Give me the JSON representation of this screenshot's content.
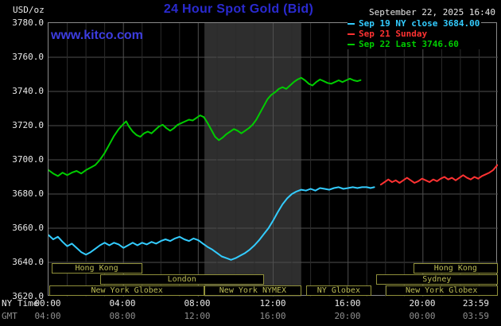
{
  "header": {
    "units": "USD/oz",
    "title": "24 Hour Spot Gold (Bid)",
    "datetime": "September 22, 2025 16:40",
    "watermark": "www.kitco.com",
    "legend": [
      {
        "label": "Sep 19 NY close 3684.00",
        "color": "#33ccff"
      },
      {
        "label": "Sep 21 Sunday",
        "color": "#ff3232"
      },
      {
        "label": "Sep 22 Last 3746.60",
        "color": "#00cc00"
      }
    ]
  },
  "axes": {
    "ny_time_label": "NY Time",
    "gmt_label": "GMT",
    "x_tick_hours": [
      0,
      4,
      8,
      12,
      16,
      20,
      23.983
    ],
    "x_ticks_ny": [
      "00:00",
      "04:00",
      "08:00",
      "12:00",
      "16:00",
      "20:00",
      "23:59"
    ],
    "x_ticks_gmt": [
      "04:00",
      "08:00",
      "12:00",
      "16:00",
      "20:00",
      "00:00",
      "03:59"
    ],
    "y_ticks": [
      "3780.0",
      "3760.0",
      "3740.0",
      "3720.0",
      "3700.0",
      "3680.0",
      "3660.0",
      "3640.0",
      "3620.0"
    ]
  },
  "colors": {
    "background": "#000000",
    "title_blue": "#2a2ad0",
    "watermark_blue": "#3d3de0",
    "grid_major": "#4f4f4f",
    "grid_minor": "#2b2b2b",
    "band": "#2e2e2e",
    "plot_border": "#8a8a8a",
    "session_border": "#90903a",
    "session_text": "#bdbd55",
    "axis_text": "#e8e8e8",
    "gmt_text": "#8f8f8f",
    "sep19_cyan": "#33ccff",
    "sep21_red": "#ff3232",
    "sep22_green": "#00cc00"
  },
  "chart_data": {
    "type": "line",
    "title": "24 Hour Spot Gold (Bid)",
    "ylabel": "USD/oz",
    "xlabel": "NY Time (hours)",
    "xlim": [
      0,
      24
    ],
    "ylim": [
      3620,
      3780
    ],
    "y_tick_step": 20,
    "grid": true,
    "legend_position": "top-right",
    "highlight_band": {
      "from_hour": 8.33,
      "to_hour": 13.5,
      "note": "NYMEX floor session"
    },
    "sessions": [
      {
        "row": 0,
        "label": "Hong Kong",
        "from": 0.15,
        "to": 5.0
      },
      {
        "row": 0,
        "label": "Hong Kong",
        "from": 19.5,
        "to": 23.98
      },
      {
        "row": 1,
        "label": "London",
        "from": 2.75,
        "to": 11.5
      },
      {
        "row": 1,
        "label": "Sydney",
        "from": 17.5,
        "to": 23.98
      },
      {
        "row": 2,
        "label": "New York Globex",
        "from": 0.05,
        "to": 8.33
      },
      {
        "row": 2,
        "label": "New York NYMEX",
        "from": 8.33,
        "to": 13.5
      },
      {
        "row": 2,
        "label": "NY Globex",
        "from": 13.75,
        "to": 17.25
      },
      {
        "row": 2,
        "label": "New York Globex",
        "from": 18.0,
        "to": 23.98
      }
    ],
    "series": [
      {
        "key": "sep19",
        "name": "Sep 19 NY close 3684.00",
        "color": "#33ccff",
        "points": [
          [
            0,
            3656
          ],
          [
            0.25,
            3653.5
          ],
          [
            0.5,
            3655
          ],
          [
            0.75,
            3652
          ],
          [
            1,
            3649.5
          ],
          [
            1.25,
            3651
          ],
          [
            1.5,
            3648.5
          ],
          [
            1.75,
            3646
          ],
          [
            2,
            3644.5
          ],
          [
            2.25,
            3646
          ],
          [
            2.5,
            3648
          ],
          [
            2.75,
            3650
          ],
          [
            3,
            3651.5
          ],
          [
            3.25,
            3650
          ],
          [
            3.5,
            3651.5
          ],
          [
            3.75,
            3650.5
          ],
          [
            4,
            3648.5
          ],
          [
            4.25,
            3650
          ],
          [
            4.5,
            3651.5
          ],
          [
            4.75,
            3650
          ],
          [
            5,
            3651.5
          ],
          [
            5.25,
            3650.5
          ],
          [
            5.5,
            3652
          ],
          [
            5.75,
            3651
          ],
          [
            6,
            3652.5
          ],
          [
            6.25,
            3653.5
          ],
          [
            6.5,
            3652.5
          ],
          [
            6.75,
            3654
          ],
          [
            7,
            3655
          ],
          [
            7.25,
            3653.5
          ],
          [
            7.5,
            3652.5
          ],
          [
            7.75,
            3654
          ],
          [
            8,
            3653
          ],
          [
            8.25,
            3651
          ],
          [
            8.5,
            3649
          ],
          [
            8.75,
            3647.5
          ],
          [
            9,
            3645.5
          ],
          [
            9.25,
            3643.5
          ],
          [
            9.5,
            3642.5
          ],
          [
            9.75,
            3641.5
          ],
          [
            10,
            3642.5
          ],
          [
            10.25,
            3644
          ],
          [
            10.5,
            3645.5
          ],
          [
            10.75,
            3647.5
          ],
          [
            11,
            3650
          ],
          [
            11.25,
            3653
          ],
          [
            11.5,
            3656.5
          ],
          [
            11.75,
            3660
          ],
          [
            12,
            3664.5
          ],
          [
            12.25,
            3669.5
          ],
          [
            12.5,
            3674
          ],
          [
            12.75,
            3677.5
          ],
          [
            13,
            3680
          ],
          [
            13.25,
            3681.5
          ],
          [
            13.5,
            3682.5
          ],
          [
            13.75,
            3682
          ],
          [
            14,
            3683
          ],
          [
            14.25,
            3682
          ],
          [
            14.5,
            3683.5
          ],
          [
            14.75,
            3683
          ],
          [
            15,
            3682.5
          ],
          [
            15.25,
            3683.5
          ],
          [
            15.5,
            3684
          ],
          [
            15.75,
            3683
          ],
          [
            16,
            3683.5
          ],
          [
            16.25,
            3684
          ],
          [
            16.5,
            3683.5
          ],
          [
            16.75,
            3684
          ],
          [
            17,
            3684
          ],
          [
            17.2,
            3683.5
          ],
          [
            17.4,
            3684
          ]
        ]
      },
      {
        "key": "sep21",
        "name": "Sep 21 Sunday",
        "color": "#ff3232",
        "points": [
          [
            17.75,
            3685.5
          ],
          [
            17.95,
            3687
          ],
          [
            18.15,
            3688.5
          ],
          [
            18.35,
            3687
          ],
          [
            18.55,
            3688
          ],
          [
            18.75,
            3686.5
          ],
          [
            18.95,
            3688
          ],
          [
            19.15,
            3689.5
          ],
          [
            19.35,
            3688
          ],
          [
            19.55,
            3686.5
          ],
          [
            19.75,
            3687.5
          ],
          [
            19.95,
            3689
          ],
          [
            20.15,
            3688
          ],
          [
            20.35,
            3687
          ],
          [
            20.55,
            3688.5
          ],
          [
            20.75,
            3687.5
          ],
          [
            20.95,
            3689
          ],
          [
            21.15,
            3690
          ],
          [
            21.35,
            3688.5
          ],
          [
            21.55,
            3689.5
          ],
          [
            21.75,
            3688
          ],
          [
            21.95,
            3689.5
          ],
          [
            22.15,
            3691
          ],
          [
            22.35,
            3689.5
          ],
          [
            22.55,
            3688.5
          ],
          [
            22.75,
            3690
          ],
          [
            22.95,
            3689
          ],
          [
            23.15,
            3690.5
          ],
          [
            23.35,
            3691.5
          ],
          [
            23.55,
            3692.5
          ],
          [
            23.75,
            3694
          ],
          [
            23.98,
            3697
          ]
        ]
      },
      {
        "key": "sep22",
        "name": "Sep 22 Last 3746.60",
        "color": "#00cc00",
        "points": [
          [
            0,
            3694
          ],
          [
            0.25,
            3692
          ],
          [
            0.5,
            3690.5
          ],
          [
            0.75,
            3692.5
          ],
          [
            1,
            3691
          ],
          [
            1.25,
            3692.5
          ],
          [
            1.5,
            3693.5
          ],
          [
            1.75,
            3692
          ],
          [
            2,
            3694
          ],
          [
            2.25,
            3695.5
          ],
          [
            2.5,
            3697
          ],
          [
            2.75,
            3700
          ],
          [
            3,
            3704
          ],
          [
            3.25,
            3709
          ],
          [
            3.5,
            3714
          ],
          [
            3.75,
            3718
          ],
          [
            4,
            3721
          ],
          [
            4.15,
            3722.5
          ],
          [
            4.3,
            3719.5
          ],
          [
            4.5,
            3716.5
          ],
          [
            4.7,
            3714.5
          ],
          [
            4.9,
            3713.5
          ],
          [
            5.1,
            3715.5
          ],
          [
            5.3,
            3716.5
          ],
          [
            5.5,
            3715.5
          ],
          [
            5.7,
            3717.5
          ],
          [
            5.9,
            3719.5
          ],
          [
            6.1,
            3720.5
          ],
          [
            6.3,
            3718.5
          ],
          [
            6.5,
            3717
          ],
          [
            6.7,
            3718.5
          ],
          [
            6.9,
            3720.5
          ],
          [
            7.1,
            3721.5
          ],
          [
            7.3,
            3722.5
          ],
          [
            7.5,
            3723.5
          ],
          [
            7.7,
            3723
          ],
          [
            7.9,
            3724.5
          ],
          [
            8.1,
            3726
          ],
          [
            8.3,
            3725
          ],
          [
            8.5,
            3721.5
          ],
          [
            8.7,
            3717.5
          ],
          [
            8.9,
            3713.5
          ],
          [
            9.1,
            3711.5
          ],
          [
            9.3,
            3713
          ],
          [
            9.5,
            3715
          ],
          [
            9.7,
            3716.5
          ],
          [
            9.9,
            3718
          ],
          [
            10.1,
            3717
          ],
          [
            10.3,
            3715.5
          ],
          [
            10.5,
            3717
          ],
          [
            10.7,
            3718.5
          ],
          [
            10.9,
            3720.5
          ],
          [
            11.1,
            3723.5
          ],
          [
            11.3,
            3727.5
          ],
          [
            11.5,
            3731.5
          ],
          [
            11.7,
            3735.5
          ],
          [
            11.9,
            3738
          ],
          [
            12.1,
            3739.5
          ],
          [
            12.3,
            3741.5
          ],
          [
            12.5,
            3742.5
          ],
          [
            12.7,
            3741.5
          ],
          [
            12.9,
            3743.5
          ],
          [
            13.1,
            3745.5
          ],
          [
            13.3,
            3747
          ],
          [
            13.5,
            3748
          ],
          [
            13.7,
            3746.5
          ],
          [
            13.9,
            3744.5
          ],
          [
            14.1,
            3743.5
          ],
          [
            14.3,
            3745.5
          ],
          [
            14.5,
            3747
          ],
          [
            14.7,
            3746
          ],
          [
            14.9,
            3745
          ],
          [
            15.1,
            3744.5
          ],
          [
            15.3,
            3745.5
          ],
          [
            15.5,
            3746.5
          ],
          [
            15.7,
            3745.5
          ],
          [
            15.9,
            3746.5
          ],
          [
            16.1,
            3747.5
          ],
          [
            16.3,
            3746.5
          ],
          [
            16.5,
            3746
          ],
          [
            16.67,
            3746.6
          ]
        ]
      }
    ]
  }
}
